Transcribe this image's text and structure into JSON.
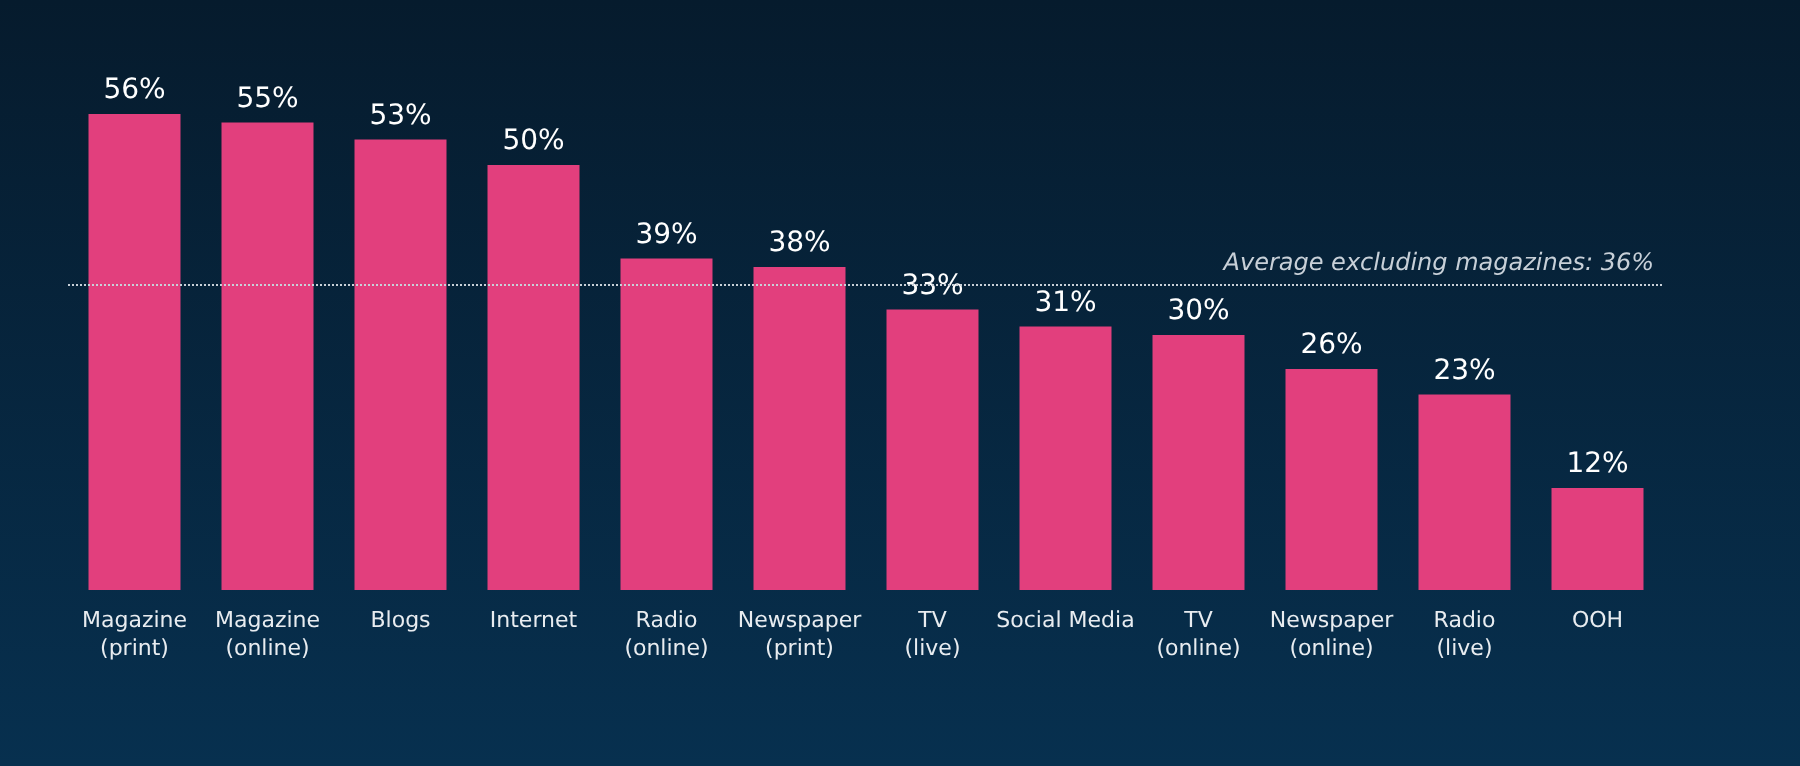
{
  "chart_data": {
    "type": "bar",
    "categories": [
      "Magazine\n(print)",
      "Magazine\n(online)",
      "Blogs",
      "Internet",
      "Radio\n(online)",
      "Newspaper\n(print)",
      "TV\n(live)",
      "Social Media",
      "TV\n(online)",
      "Newspaper\n(online)",
      "Radio\n(live)",
      "OOH"
    ],
    "values": [
      56,
      55,
      53,
      50,
      39,
      38,
      33,
      31,
      30,
      26,
      23,
      12
    ],
    "value_labels": [
      "56%",
      "55%",
      "53%",
      "50%",
      "39%",
      "38%",
      "33%",
      "31%",
      "30%",
      "26%",
      "23%",
      "12%"
    ],
    "color": "#e23f7d",
    "ref_lines": [
      {
        "axis": "y",
        "value": 36,
        "label": "Average excluding magazines: 36%",
        "color": "#c8d0d8",
        "line_style": "dotted"
      }
    ]
  }
}
